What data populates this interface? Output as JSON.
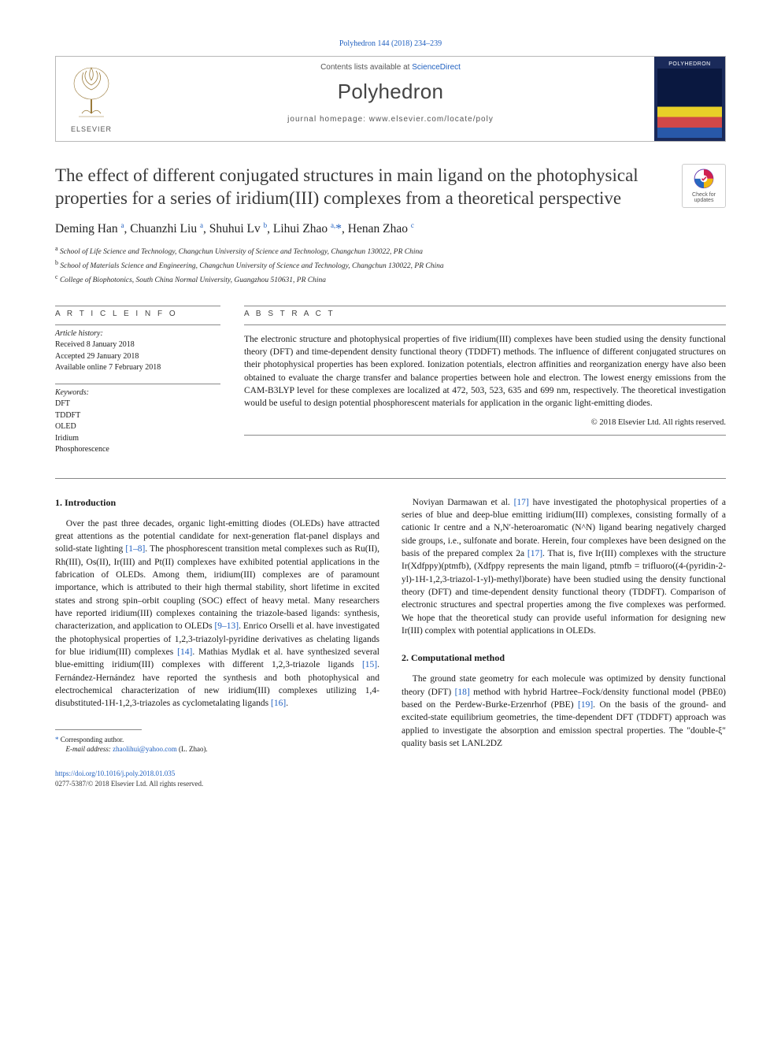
{
  "citation": "Polyhedron 144 (2018) 234–239",
  "header": {
    "contents_line_prefix": "Contents lists available at ",
    "contents_line_link": "ScienceDirect",
    "journal": "Polyhedron",
    "homepage_prefix": "journal homepage: ",
    "homepage_url": "www.elsevier.com/locate/poly",
    "publisher_word": "ELSEVIER",
    "cover_word": "POLYHEDRON"
  },
  "updates_badge": "Check for updates",
  "title": "The effect of different conjugated structures in main ligand on the photophysical properties for a series of iridium(III) complexes from a theoretical perspective",
  "authors_html": "Deming Han <sup>a</sup>, Chuanzhi Liu <sup>a</sup>, Shuhui Lv <sup>b</sup>, Lihui Zhao <sup>a,</sup><span class='star'>*</span>, Henan Zhao <sup>c</sup>",
  "affiliations": {
    "a": "School of Life Science and Technology, Changchun University of Science and Technology, Changchun 130022, PR China",
    "b": "School of Materials Science and Engineering, Changchun University of Science and Technology, Changchun 130022, PR China",
    "c": "College of Biophotonics, South China Normal University, Guangzhou 510631, PR China"
  },
  "info": {
    "head": "A R T I C L E   I N F O",
    "history_label": "Article history:",
    "received": "Received 8 January 2018",
    "accepted": "Accepted 29 January 2018",
    "online": "Available online 7 February 2018",
    "keywords_label": "Keywords:",
    "keywords": [
      "DFT",
      "TDDFT",
      "OLED",
      "Iridium",
      "Phosphorescence"
    ]
  },
  "abstract": {
    "head": "A B S T R A C T",
    "text": "The electronic structure and photophysical properties of five iridium(III) complexes have been studied using the density functional theory (DFT) and time-dependent density functional theory (TDDFT) methods. The influence of different conjugated structures on their photophysical properties has been explored. Ionization potentials, electron affinities and reorganization energy have also been obtained to evaluate the charge transfer and balance properties between hole and electron. The lowest energy emissions from the CAM-B3LYP level for these complexes are localized at 472, 503, 523, 635 and 699 nm, respectively. The theoretical investigation would be useful to design potential phosphorescent materials for application in the organic light-emitting diodes.",
    "copyright": "© 2018 Elsevier Ltd. All rights reserved."
  },
  "body": {
    "intro_head": "1. Introduction",
    "intro_p1_a": "Over the past three decades, organic light-emitting diodes (OLEDs) have attracted great attentions as the potential candidate for next-generation flat-panel displays and solid-state lighting ",
    "intro_p1_ref1": "[1–8]",
    "intro_p1_b": ". The phosphorescent transition metal complexes such as Ru(II), Rh(III), Os(II), Ir(III) and Pt(II) complexes have exhibited potential applications in the fabrication of OLEDs. Among them, iridium(III) complexes are of paramount importance, which is attributed to their high thermal stability, short lifetime in excited states and strong spin–orbit coupling (SOC) effect of heavy metal. Many researchers have reported iridium(III) complexes containing the triazole-based ligands: synthesis, characterization, and application to OLEDs ",
    "intro_p1_ref2": "[9–13]",
    "intro_p1_c": ". Enrico Orselli et al. have investigated the photophysical properties of 1,2,3-triazolyl-pyridine derivatives as chelating ligands for blue iridium(III) complexes ",
    "intro_p1_ref3": "[14]",
    "intro_p1_d": ". Mathias Mydlak et al. have synthesized several blue-emitting iridium(III) complexes with different 1,2,3-triazole ligands ",
    "intro_p1_ref4": "[15]",
    "intro_p1_e": ". Fernández-Hernández have reported the synthesis and both photophysical and electrochemical characterization of new iridium(III) complexes utilizing 1,4-disubstituted-1H-1,2,3-triazoles as cyclometalating ligands ",
    "intro_p1_ref5": "[16]",
    "intro_p1_f": ".",
    "intro_p2_a": "Noviyan Darmawan et al. ",
    "intro_p2_ref1": "[17]",
    "intro_p2_b": " have investigated the photophysical properties of a series of blue and deep-blue emitting iridium(III) complexes, consisting formally of a cationic Ir centre and a N,N′-heteroaromatic (N^N) ligand bearing negatively charged side groups, i.e., sulfonate and borate. Herein, four complexes have been designed on the basis of the prepared complex 2a ",
    "intro_p2_ref2": "[17]",
    "intro_p2_c": ". That is, five Ir(III) complexes with the structure Ir(Xdfppy)(ptmfb), (Xdfppy represents the main ligand, ptmfb = trifluoro((4-(pyridin-2-yl)-1H-1,2,3-triazol-1-yl)-methyl)borate) have been studied using the density functional theory (DFT) and time-dependent density functional theory (TDDFT). Comparison of electronic structures and spectral properties among the five complexes was performed. We hope that the theoretical study can provide useful information for designing new Ir(III) complex with potential applications in OLEDs.",
    "comp_head": "2. Computational method",
    "comp_p1_a": "The ground state geometry for each molecule was optimized by density functional theory (DFT) ",
    "comp_p1_ref1": "[18]",
    "comp_p1_b": " method with hybrid Hartree–Fock/density functional model (PBE0) based on the Perdew-Burke-Erzenrhof (PBE) ",
    "comp_p1_ref2": "[19]",
    "comp_p1_c": ". On the basis of the ground- and excited-state equilibrium geometries, the time-dependent DFT (TDDFT) approach was applied to investigate the absorption and emission spectral properties. The \"double-ξ\" quality basis set LANL2DZ"
  },
  "footnote": {
    "corr": "Corresponding author.",
    "email_label": "E-mail address:",
    "email": "zhaolihui@yahoo.com",
    "email_person": "(L. Zhao)."
  },
  "footer": {
    "doi": "https://doi.org/10.1016/j.poly.2018.01.035",
    "issn_line": "0277-5387/© 2018 Elsevier Ltd. All rights reserved."
  },
  "colors": {
    "link": "#2060c0",
    "rule": "#888888",
    "text": "#1a1a1a"
  }
}
